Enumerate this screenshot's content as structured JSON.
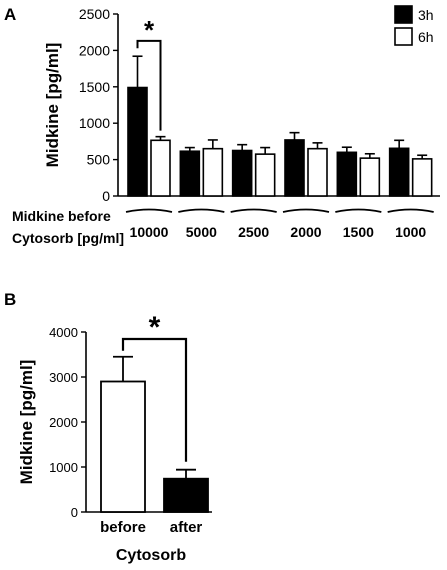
{
  "chart_data": [
    {
      "panel": "A",
      "type": "bar",
      "ylabel": "Midkine [pg/ml]",
      "ylim": [
        0,
        2500
      ],
      "yticks": [
        0,
        500,
        1000,
        1500,
        2000,
        2500
      ],
      "xaxis_title_lines": [
        "Midkine before",
        "Cytosorb [pg/ml]"
      ],
      "categories": [
        "10000",
        "5000",
        "2500",
        "2000",
        "1500",
        "1000"
      ],
      "series": [
        {
          "name": "3h",
          "fill": "#000000",
          "values": [
            1490,
            615,
            625,
            770,
            600,
            655
          ],
          "errors": [
            430,
            50,
            80,
            100,
            70,
            110
          ]
        },
        {
          "name": "6h",
          "fill": "#ffffff",
          "values": [
            765,
            650,
            575,
            650,
            520,
            510
          ],
          "errors": [
            50,
            120,
            90,
            80,
            60,
            50
          ]
        }
      ],
      "legend_position": "top-right",
      "significance": {
        "label": "*",
        "between": "3h vs 6h at 10000"
      }
    },
    {
      "panel": "B",
      "type": "bar",
      "ylabel": "Midkine [pg/ml]",
      "xlabel": "Cytosorb",
      "ylim": [
        0,
        4000
      ],
      "yticks": [
        0,
        1000,
        2000,
        3000,
        4000
      ],
      "categories": [
        "before",
        "after"
      ],
      "values": [
        2900,
        740
      ],
      "errors": [
        550,
        200
      ],
      "fills": [
        "#ffffff",
        "#000000"
      ],
      "significance": {
        "label": "*",
        "between": "before vs after"
      }
    }
  ]
}
